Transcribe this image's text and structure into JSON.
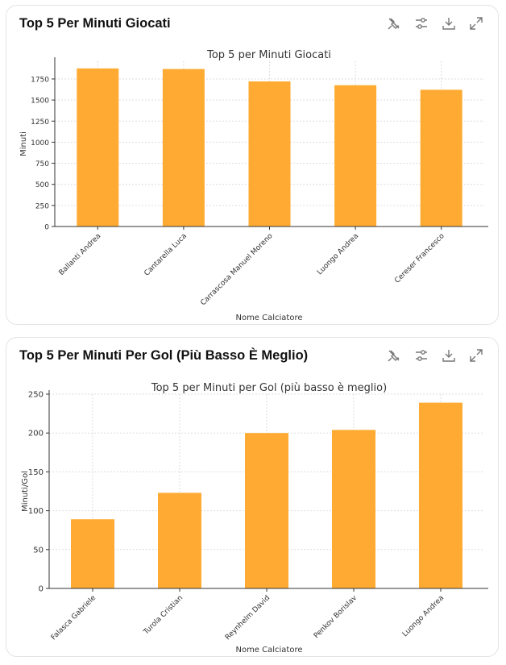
{
  "cards": [
    {
      "title": "Top 5 Per Minuti Giocati"
    },
    {
      "title": "Top 5 Per Minuti Per Gol (Più Basso È Meglio)"
    }
  ],
  "toolbar": {
    "icons": [
      "unpin-icon",
      "settings-sliders-icon",
      "download-icon",
      "expand-icon"
    ]
  },
  "colors": {
    "bar": "#ffab33"
  },
  "chart_data": [
    {
      "type": "bar",
      "title": "Top 5 per Minuti Giocati",
      "xlabel": "Nome Calciatore",
      "ylabel": "Minuti",
      "categories": [
        "Ballanti Andrea",
        "Cantarella Luca",
        "Carrascosa Manuel Moreno",
        "Luongo Andrea",
        "Cereser Francesco"
      ],
      "values": [
        1875,
        1868,
        1721,
        1676,
        1622
      ],
      "ylim": [
        0,
        1960
      ],
      "yticks": [
        "0",
        "250",
        "500",
        "750",
        "1000",
        "1250",
        "1500",
        "1750"
      ],
      "grid": true
    },
    {
      "type": "bar",
      "title": "Top 5 per Minuti per Gol (più basso è meglio)",
      "xlabel": "Nome Calciatore",
      "ylabel": "Minuti/Gol",
      "categories": [
        "Falasca Gabriele",
        "Turola Cristian",
        "Reynhelm David",
        "Penkov Borislav",
        "Luongo Andrea"
      ],
      "values": [
        89,
        123,
        200,
        204,
        239
      ],
      "ylim": [
        0,
        250
      ],
      "yticks": [
        "0",
        "50",
        "100",
        "150",
        "200",
        "250"
      ],
      "grid": true
    }
  ]
}
